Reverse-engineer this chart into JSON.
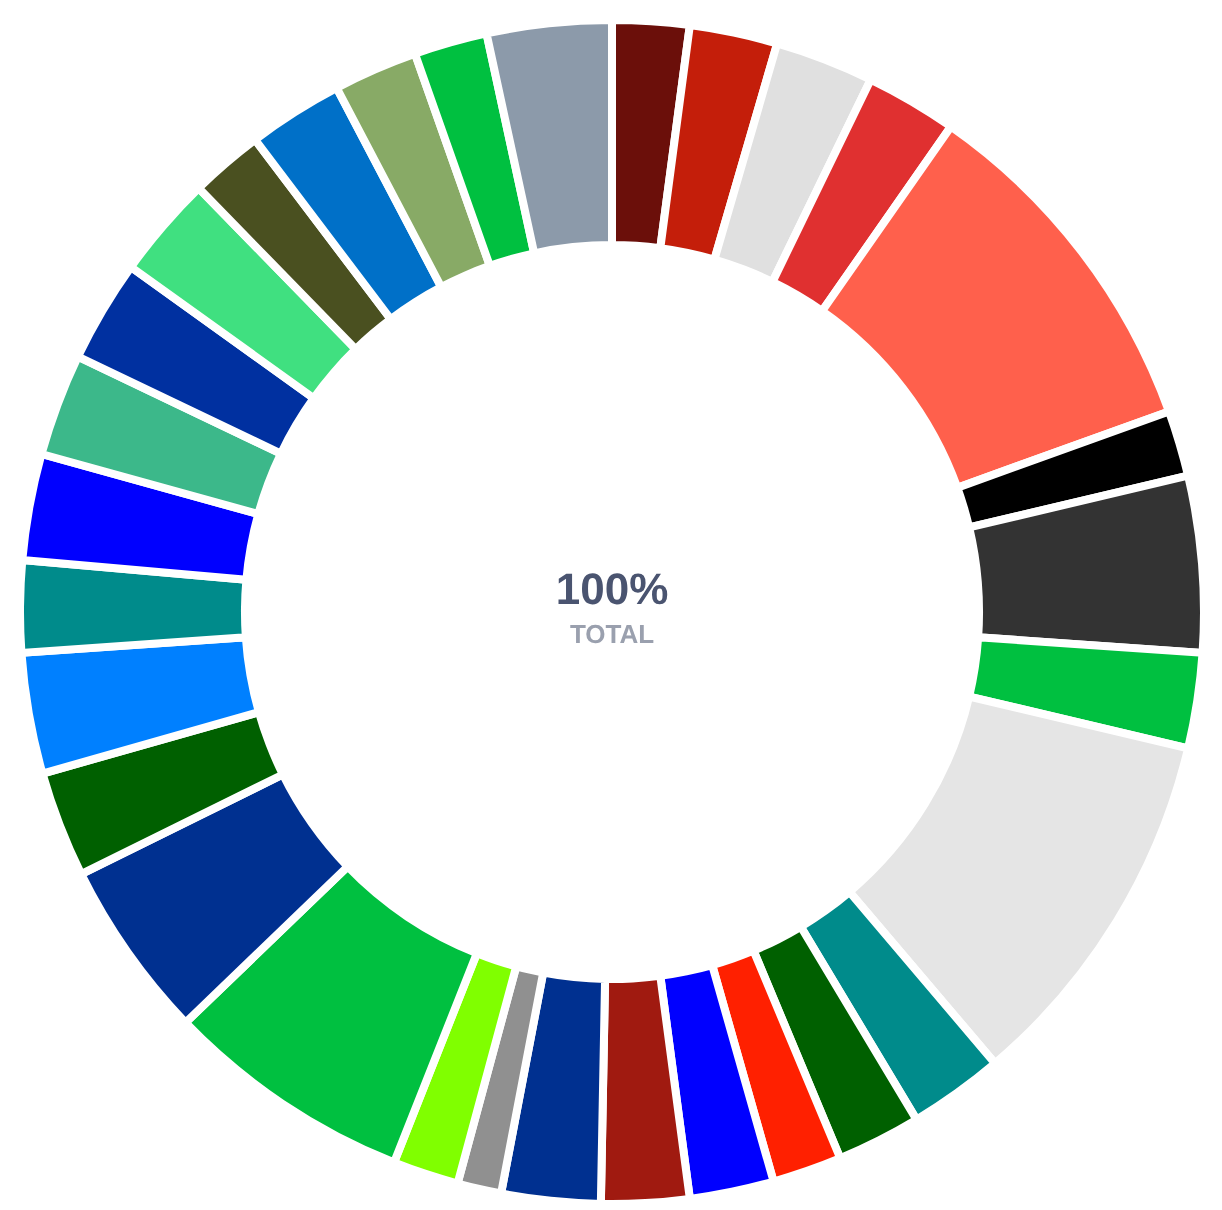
{
  "chart_data": {
    "type": "donut",
    "categories": [
      null,
      null,
      null,
      null,
      null,
      null,
      null,
      null,
      null,
      null,
      null,
      null,
      null,
      null,
      null,
      null,
      null,
      null,
      null,
      null,
      null,
      null,
      null,
      null,
      null,
      null,
      null,
      null,
      null,
      null,
      null
    ],
    "values": [
      2.1,
      2.4,
      2.7,
      2.5,
      9.8,
      1.8,
      4.8,
      2.6,
      10.1,
      2.6,
      2.3,
      1.9,
      2.3,
      2.4,
      2.7,
      1.2,
      1.8,
      6.8,
      4.9,
      2.9,
      3.3,
      2.5,
      2.9,
      2.8,
      2.8,
      2.8,
      2.0,
      2.6,
      2.3,
      2.0,
      3.4
    ],
    "colors": [
      "#6b0f0a",
      "#c41e0a",
      "#e0e0e0",
      "#e03030",
      "#ff604c",
      "#000000",
      "#333333",
      "#00c040",
      "#e5e5e5",
      "#008b8b",
      "#006000",
      "#ff2000",
      "#0000ff",
      "#a01a10",
      "#003090",
      "#909090",
      "#80ff00",
      "#00c040",
      "#003090",
      "#006000",
      "#0080ff",
      "#008b8b",
      "#0000ff",
      "#3cb88a",
      "#0030a0",
      "#40e080",
      "#4a5020",
      "#0070c8",
      "#88aa66",
      "#00c040",
      "#8c9aaa"
    ],
    "annotations": [
      "100%",
      "TOTAL"
    ],
    "legend": false
  }
}
